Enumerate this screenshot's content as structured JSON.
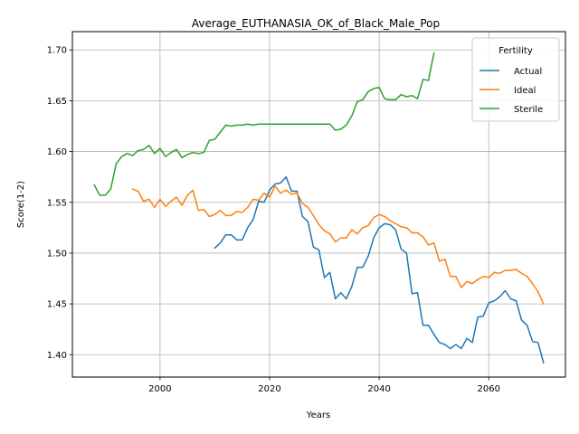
{
  "chart_data": {
    "type": "line",
    "title": "Average_EUTHANASIA_OK_of_Black_Male_Pop",
    "xlabel": "Years",
    "ylabel": "Score(1-2)",
    "xlim": [
      1984,
      2074
    ],
    "ylim": [
      1.378,
      1.718
    ],
    "xticks": [
      2000,
      2020,
      2040,
      2060
    ],
    "yticks": [
      1.4,
      1.45,
      1.5,
      1.55,
      1.6,
      1.65,
      1.7
    ],
    "ytick_labels": [
      "1.40",
      "1.45",
      "1.50",
      "1.55",
      "1.60",
      "1.65",
      "1.70"
    ],
    "grid": true,
    "legend": {
      "title": "Fertility",
      "position": "top-right"
    },
    "series": [
      {
        "name": "Actual",
        "color": "#1f77b4",
        "x": [
          2010,
          2011,
          2012,
          2013,
          2014,
          2015,
          2016,
          2017,
          2018,
          2019,
          2020,
          2021,
          2022,
          2023,
          2024,
          2025,
          2026,
          2027,
          2028,
          2029,
          2030,
          2031,
          2032,
          2033,
          2034,
          2035,
          2036,
          2037,
          2038,
          2039,
          2040,
          2041,
          2042,
          2043,
          2044,
          2045,
          2046,
          2047,
          2048,
          2049,
          2050,
          2051,
          2052,
          2053,
          2054,
          2055,
          2056,
          2057,
          2058,
          2059,
          2060,
          2061,
          2062,
          2063,
          2064,
          2065,
          2066,
          2067,
          2068,
          2069,
          2070
        ],
        "values": [
          1.505,
          1.51,
          1.518,
          1.518,
          1.513,
          1.513,
          1.525,
          1.533,
          1.551,
          1.55,
          1.562,
          1.568,
          1.569,
          1.575,
          1.561,
          1.561,
          1.536,
          1.531,
          1.506,
          1.503,
          1.476,
          1.481,
          1.455,
          1.461,
          1.455,
          1.467,
          1.486,
          1.486,
          1.497,
          1.515,
          1.525,
          1.529,
          1.528,
          1.523,
          1.504,
          1.5,
          1.46,
          1.461,
          1.429,
          1.429,
          1.42,
          1.412,
          1.41,
          1.406,
          1.41,
          1.406,
          1.416,
          1.412,
          1.437,
          1.438,
          1.451,
          1.453,
          1.457,
          1.463,
          1.455,
          1.453,
          1.434,
          1.429,
          1.413,
          1.412,
          1.392
        ]
      },
      {
        "name": "Ideal",
        "color": "#ff7f0e",
        "x": [
          1995,
          1996,
          1997,
          1998,
          1999,
          2000,
          2001,
          2002,
          2003,
          2004,
          2005,
          2006,
          2007,
          2008,
          2009,
          2010,
          2011,
          2012,
          2013,
          2014,
          2015,
          2016,
          2017,
          2018,
          2019,
          2020,
          2021,
          2022,
          2023,
          2024,
          2025,
          2026,
          2027,
          2028,
          2029,
          2030,
          2031,
          2032,
          2033,
          2034,
          2035,
          2036,
          2037,
          2038,
          2039,
          2040,
          2041,
          2042,
          2043,
          2044,
          2045,
          2046,
          2047,
          2048,
          2049,
          2050,
          2051,
          2052,
          2053,
          2054,
          2055,
          2056,
          2057,
          2058,
          2059,
          2060,
          2061,
          2062,
          2063,
          2064,
          2065,
          2066,
          2067,
          2068,
          2069,
          2070
        ],
        "values": [
          1.563,
          1.561,
          1.551,
          1.553,
          1.545,
          1.553,
          1.546,
          1.551,
          1.555,
          1.547,
          1.557,
          1.562,
          1.542,
          1.543,
          1.536,
          1.538,
          1.542,
          1.537,
          1.537,
          1.541,
          1.54,
          1.545,
          1.553,
          1.552,
          1.559,
          1.555,
          1.566,
          1.559,
          1.562,
          1.558,
          1.559,
          1.549,
          1.545,
          1.537,
          1.528,
          1.522,
          1.519,
          1.511,
          1.515,
          1.515,
          1.523,
          1.519,
          1.525,
          1.527,
          1.535,
          1.538,
          1.536,
          1.532,
          1.529,
          1.526,
          1.525,
          1.52,
          1.52,
          1.516,
          1.508,
          1.51,
          1.492,
          1.494,
          1.477,
          1.477,
          1.466,
          1.472,
          1.47,
          1.474,
          1.477,
          1.476,
          1.481,
          1.48,
          1.483,
          1.483,
          1.484,
          1.48,
          1.477,
          1.47,
          1.462,
          1.45
        ]
      },
      {
        "name": "Sterile",
        "color": "#2ca02c",
        "x": [
          1988,
          1989,
          1990,
          1991,
          1992,
          1993,
          1994,
          1995,
          1996,
          1997,
          1998,
          1999,
          2000,
          2001,
          2002,
          2003,
          2004,
          2005,
          2006,
          2007,
          2008,
          2009,
          2010,
          2011,
          2012,
          2013,
          2014,
          2015,
          2016,
          2017,
          2018,
          2019,
          2020,
          2021,
          2022,
          2023,
          2024,
          2025,
          2026,
          2027,
          2028,
          2029,
          2030,
          2031,
          2032,
          2033,
          2034,
          2035,
          2036,
          2037,
          2038,
          2039,
          2040,
          2041,
          2042,
          2043,
          2044,
          2045,
          2046,
          2047,
          2048,
          2049,
          2050
        ],
        "values": [
          1.567,
          1.557,
          1.557,
          1.563,
          1.588,
          1.595,
          1.598,
          1.596,
          1.601,
          1.602,
          1.606,
          1.598,
          1.603,
          1.595,
          1.599,
          1.602,
          1.594,
          1.597,
          1.599,
          1.598,
          1.599,
          1.611,
          1.612,
          1.619,
          1.626,
          1.625,
          1.626,
          1.626,
          1.627,
          1.626,
          1.627,
          1.627,
          1.627,
          1.627,
          1.627,
          1.627,
          1.627,
          1.627,
          1.627,
          1.627,
          1.627,
          1.627,
          1.627,
          1.627,
          1.621,
          1.622,
          1.626,
          1.635,
          1.649,
          1.651,
          1.659,
          1.662,
          1.663,
          1.652,
          1.651,
          1.651,
          1.656,
          1.654,
          1.655,
          1.652,
          1.671,
          1.67,
          1.697
        ]
      }
    ]
  }
}
